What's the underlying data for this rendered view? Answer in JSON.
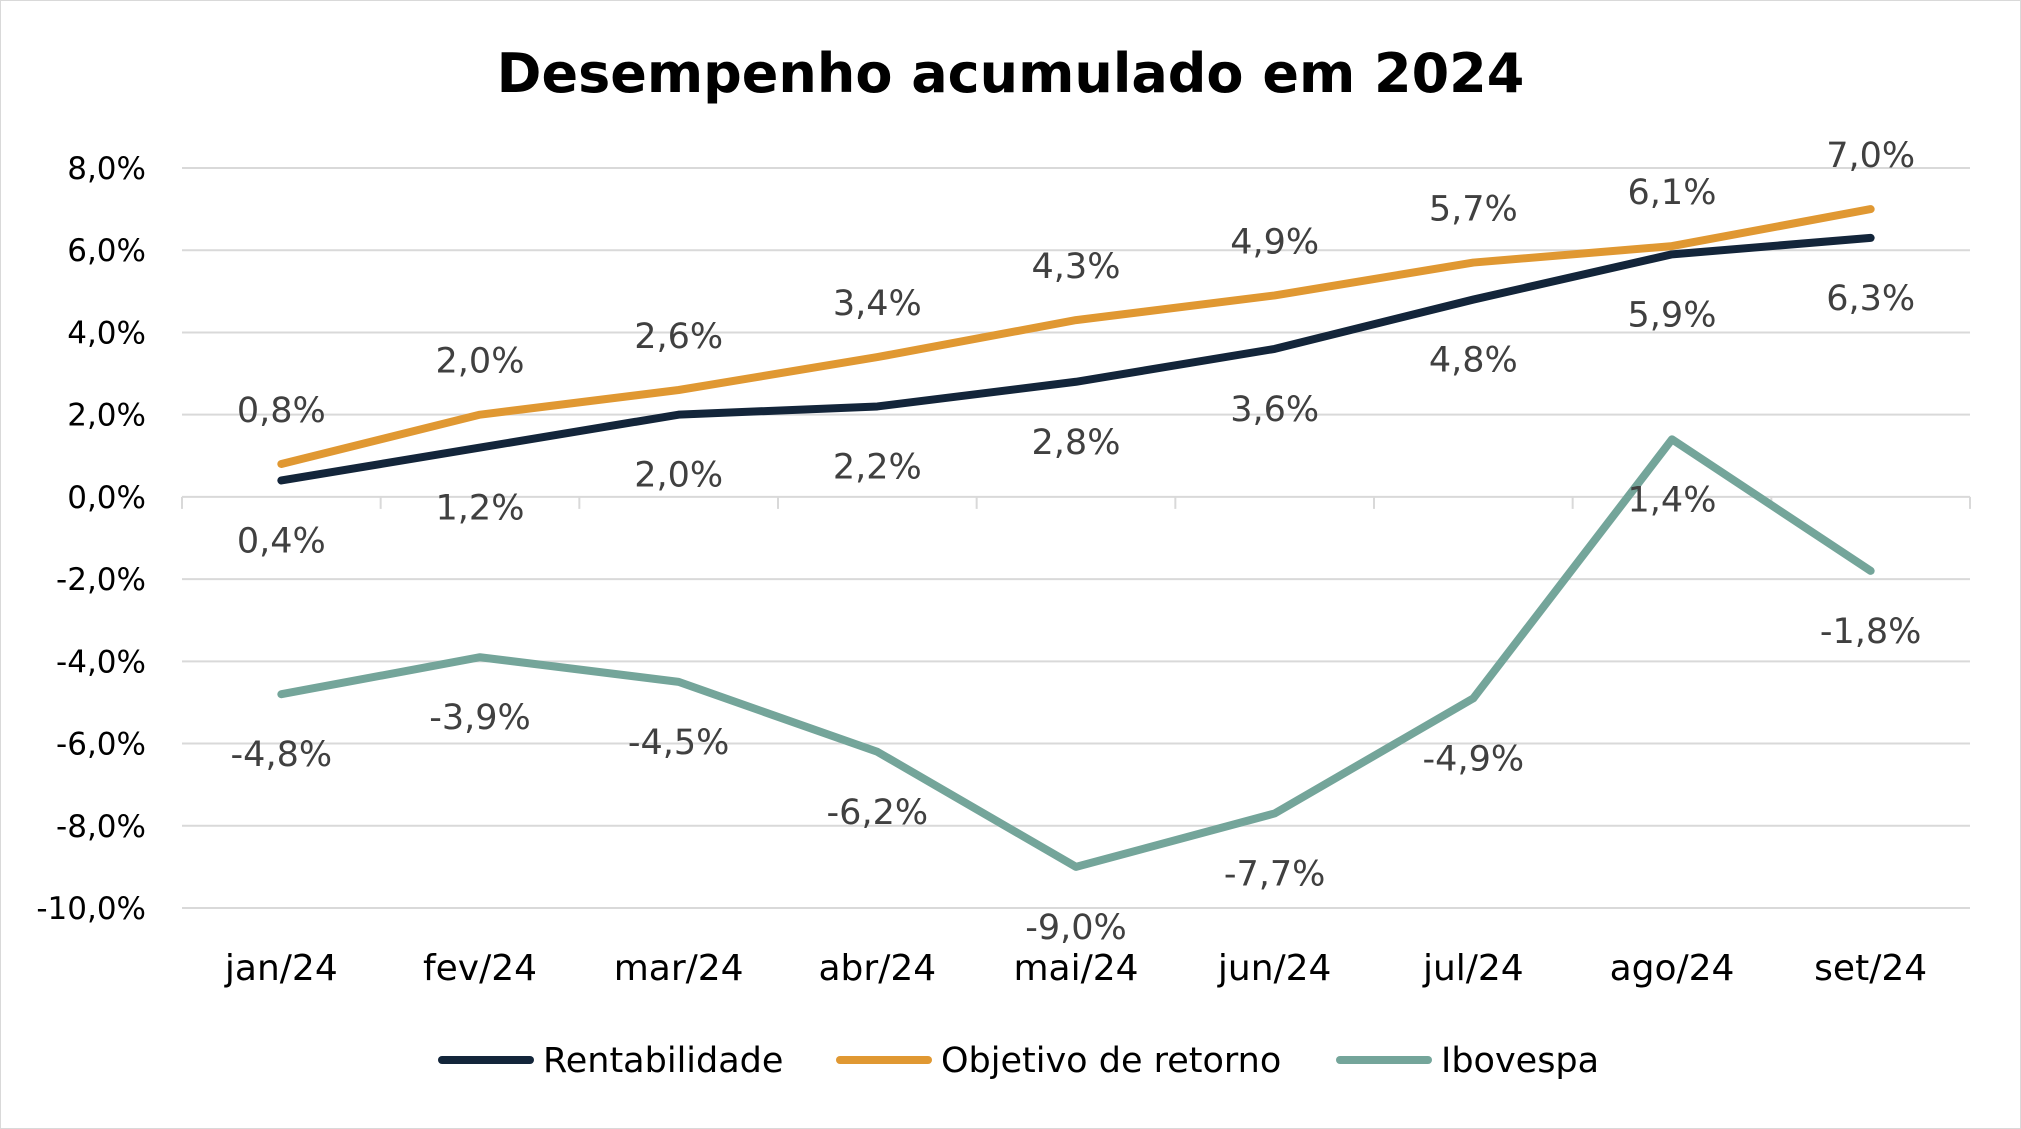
{
  "chart_data": {
    "type": "line",
    "title": "Desempenho acumulado em 2024",
    "categories": [
      "jan/24",
      "fev/24",
      "mar/24",
      "abr/24",
      "mai/24",
      "jun/24",
      "jul/24",
      "ago/24",
      "set/24"
    ],
    "ylim": [
      -10,
      8
    ],
    "yticks": [
      8,
      6,
      4,
      2,
      0,
      -2,
      -4,
      -6,
      -8,
      -10
    ],
    "ytick_labels": [
      "8,0%",
      "6,0%",
      "4,0%",
      "2,0%",
      "0,0%",
      "-2,0%",
      "-4,0%",
      "-6,0%",
      "-8,0%",
      "-10,0%"
    ],
    "grid": true,
    "legend_position": "bottom",
    "series": [
      {
        "name": "Rentabilidade",
        "color": "#13253a",
        "values": [
          0.4,
          1.2,
          2.0,
          2.2,
          2.8,
          3.6,
          4.8,
          5.9,
          6.3
        ],
        "labels": [
          "0,4%",
          "1,2%",
          "2,0%",
          "2,2%",
          "2,8%",
          "3,6%",
          "4,8%",
          "5,9%",
          "6,3%"
        ],
        "label_position": "below"
      },
      {
        "name": "Objetivo de retorno",
        "color": "#e09832",
        "values": [
          0.8,
          2.0,
          2.6,
          3.4,
          4.3,
          4.9,
          5.7,
          6.1,
          7.0
        ],
        "labels": [
          "0,8%",
          "2,0%",
          "2,6%",
          "3,4%",
          "4,3%",
          "4,9%",
          "5,7%",
          "6,1%",
          "7,0%"
        ],
        "label_position": "above"
      },
      {
        "name": "Ibovespa",
        "color": "#74a59a",
        "values": [
          -4.8,
          -3.9,
          -4.5,
          -6.2,
          -9.0,
          -7.7,
          -4.9,
          1.4,
          -1.8
        ],
        "labels": [
          "-4,8%",
          "-3,9%",
          "-4,5%",
          "-6,2%",
          "-9,0%",
          "-7,7%",
          "-4,9%",
          "1,4%",
          "-1,8%"
        ],
        "label_position": "below"
      }
    ]
  }
}
